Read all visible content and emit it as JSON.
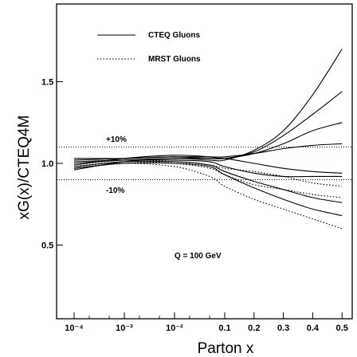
{
  "chart_data": {
    "type": "line",
    "xlabel": "Parton x",
    "ylabel": "xG(x)/CTEQ4M",
    "x_scale": "log-then-linear",
    "xlim": [
      0.0001,
      0.5
    ],
    "ylim": [
      0.5,
      1.75
    ],
    "x_ticks": [
      {
        "value": 0.0001,
        "label": "10⁻⁴"
      },
      {
        "value": 0.001,
        "label": "10⁻³"
      },
      {
        "value": 0.01,
        "label": "10⁻²"
      },
      {
        "value": 0.1,
        "label": "0.1"
      },
      {
        "value": 0.2,
        "label": "0.2"
      },
      {
        "value": 0.3,
        "label": "0.3"
      },
      {
        "value": 0.4,
        "label": "0.4"
      },
      {
        "value": 0.5,
        "label": "0.5"
      }
    ],
    "y_ticks": [
      {
        "value": 0.5,
        "label": "0.5"
      },
      {
        "value": 1.0,
        "label": "1.0"
      },
      {
        "value": 1.5,
        "label": "1.5"
      }
    ],
    "reference_lines": [
      {
        "y": 1.1,
        "label": "+10%"
      },
      {
        "y": 0.9,
        "label": "-10%"
      }
    ],
    "annotation": "Q = 100 GeV",
    "legend": {
      "placement": "top-left",
      "entries": [
        {
          "label": "CTEQ Gluons",
          "style": "solid"
        },
        {
          "label": "MRST Gluons",
          "style": "dotted"
        }
      ]
    },
    "series": [
      {
        "style": "solid",
        "x": [
          0.0001,
          0.001,
          0.01,
          0.05,
          0.1,
          0.2,
          0.3,
          0.4,
          0.5
        ],
        "y": [
          0.96,
          1.01,
          1.03,
          1.02,
          1.02,
          1.08,
          1.2,
          1.42,
          1.7
        ]
      },
      {
        "style": "solid",
        "x": [
          0.0001,
          0.001,
          0.01,
          0.05,
          0.1,
          0.2,
          0.3,
          0.4,
          0.5
        ],
        "y": [
          0.99,
          1.03,
          1.05,
          1.04,
          1.03,
          1.07,
          1.17,
          1.3,
          1.44
        ]
      },
      {
        "style": "solid",
        "x": [
          0.0001,
          0.001,
          0.01,
          0.05,
          0.1,
          0.2,
          0.3,
          0.4,
          0.5
        ],
        "y": [
          1.02,
          1.03,
          1.04,
          1.03,
          1.03,
          1.06,
          1.12,
          1.2,
          1.25
        ]
      },
      {
        "style": "solid",
        "x": [
          0.0001,
          0.001,
          0.01,
          0.05,
          0.1,
          0.2,
          0.3,
          0.4,
          0.5
        ],
        "y": [
          1.03,
          1.03,
          1.04,
          1.04,
          1.04,
          1.06,
          1.09,
          1.11,
          1.12
        ]
      },
      {
        "style": "solid",
        "x": [
          0.0001,
          0.001,
          0.01,
          0.05,
          0.1,
          0.2,
          0.3,
          0.4,
          0.5
        ],
        "y": [
          1.0,
          1.02,
          1.03,
          1.03,
          1.03,
          1.0,
          0.97,
          0.95,
          0.94
        ]
      },
      {
        "style": "solid",
        "x": [
          0.0001,
          0.001,
          0.01,
          0.05,
          0.1,
          0.2,
          0.3,
          0.4,
          0.5
        ],
        "y": [
          1.01,
          1.02,
          1.02,
          1.01,
          0.98,
          0.94,
          0.92,
          0.92,
          0.92
        ]
      },
      {
        "style": "solid",
        "x": [
          0.0001,
          0.001,
          0.01,
          0.05,
          0.1,
          0.2,
          0.3,
          0.4,
          0.5
        ],
        "y": [
          0.98,
          1.01,
          1.01,
          0.99,
          0.95,
          0.89,
          0.84,
          0.79,
          0.76
        ]
      },
      {
        "style": "solid",
        "x": [
          0.0001,
          0.001,
          0.01,
          0.05,
          0.1,
          0.2,
          0.3,
          0.4,
          0.5
        ],
        "y": [
          0.97,
          1.0,
          1.0,
          0.98,
          0.93,
          0.85,
          0.78,
          0.72,
          0.68
        ]
      },
      {
        "style": "dotted",
        "x": [
          0.0001,
          0.001,
          0.01,
          0.05,
          0.1,
          0.2,
          0.3,
          0.4,
          0.5
        ],
        "y": [
          0.99,
          1.02,
          1.01,
          0.99,
          0.97,
          0.95,
          0.92,
          0.88,
          0.86
        ]
      },
      {
        "style": "dotted",
        "x": [
          0.0001,
          0.001,
          0.01,
          0.05,
          0.1,
          0.2,
          0.3,
          0.4,
          0.5
        ],
        "y": [
          0.98,
          1.01,
          1.0,
          0.97,
          0.93,
          0.87,
          0.84,
          0.81,
          0.79
        ]
      },
      {
        "style": "dotted",
        "x": [
          0.0001,
          0.001,
          0.01,
          0.05,
          0.1,
          0.2,
          0.3,
          0.4,
          0.5
        ],
        "y": [
          0.97,
          1.0,
          0.98,
          0.92,
          0.86,
          0.78,
          0.72,
          0.66,
          0.6
        ]
      }
    ]
  }
}
